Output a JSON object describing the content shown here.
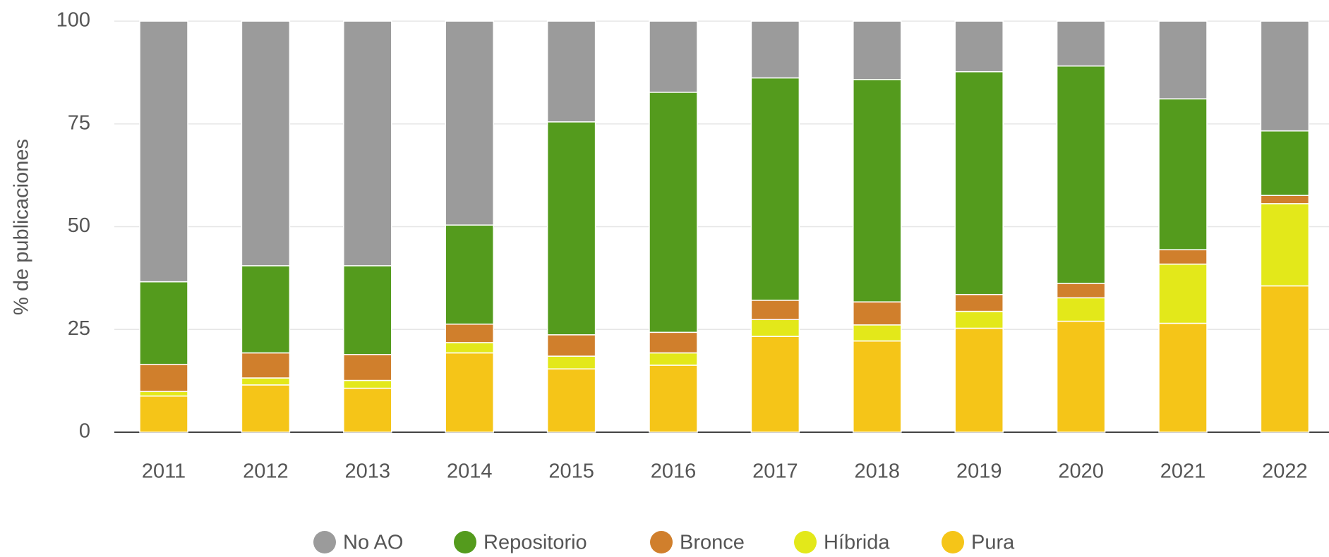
{
  "chart_data": {
    "type": "stacked_bar",
    "y_label": "% de publicaciones",
    "categories": [
      "2011",
      "2012",
      "2013",
      "2014",
      "2015",
      "2016",
      "2017",
      "2018",
      "2019",
      "2020",
      "2021",
      "2022"
    ],
    "series": [
      {
        "name": "No AO",
        "color": "#9b9b9b",
        "values": [
          63.4,
          59.5,
          59.5,
          49.6,
          24.5,
          17.3,
          13.8,
          14.2,
          12.3,
          10.9,
          18.9,
          26.7
        ]
      },
      {
        "name": "Repositorio",
        "color": "#549b1d",
        "values": [
          20.1,
          21.2,
          21.6,
          24.1,
          51.8,
          58.4,
          54.1,
          54.1,
          54.2,
          52.9,
          36.7,
          15.7
        ]
      },
      {
        "name": "Bronce",
        "color": "#d07f2c",
        "values": [
          6.6,
          6.1,
          6.3,
          4.5,
          5.2,
          5.0,
          4.7,
          5.6,
          4.1,
          3.5,
          3.5,
          2.0
        ]
      },
      {
        "name": "Híbrida",
        "color": "#e3e81a",
        "values": [
          1.1,
          1.7,
          1.9,
          2.5,
          3.1,
          3.0,
          4.1,
          3.9,
          4.1,
          5.7,
          14.4,
          20.0
        ]
      },
      {
        "name": "Pura",
        "color": "#f5c518",
        "values": [
          8.8,
          11.5,
          10.7,
          19.3,
          15.4,
          16.3,
          23.3,
          22.2,
          25.3,
          27.0,
          26.5,
          35.6
        ]
      }
    ],
    "ylim": [
      0,
      100
    ],
    "yticks": [
      0,
      25,
      50,
      75,
      100
    ],
    "grid": true,
    "legend": "bottom"
  }
}
